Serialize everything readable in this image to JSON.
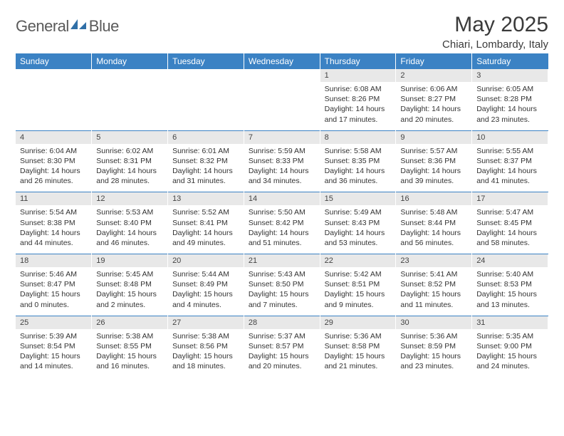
{
  "branding": {
    "word1": "General",
    "word2": "Blue"
  },
  "header": {
    "month_title": "May 2025",
    "location": "Chiari, Lombardy, Italy"
  },
  "colors": {
    "header_bg": "#3b82c4",
    "header_text": "#ffffff",
    "daynum_bg": "#e8e8e8",
    "text": "#333333",
    "rule": "#3b82c4"
  },
  "day_names": [
    "Sunday",
    "Monday",
    "Tuesday",
    "Wednesday",
    "Thursday",
    "Friday",
    "Saturday"
  ],
  "weeks": [
    [
      {
        "blank": true
      },
      {
        "blank": true
      },
      {
        "blank": true
      },
      {
        "blank": true
      },
      {
        "num": "1",
        "sunrise": "Sunrise: 6:08 AM",
        "sunset": "Sunset: 8:26 PM",
        "day1": "Daylight: 14 hours",
        "day2": "and 17 minutes."
      },
      {
        "num": "2",
        "sunrise": "Sunrise: 6:06 AM",
        "sunset": "Sunset: 8:27 PM",
        "day1": "Daylight: 14 hours",
        "day2": "and 20 minutes."
      },
      {
        "num": "3",
        "sunrise": "Sunrise: 6:05 AM",
        "sunset": "Sunset: 8:28 PM",
        "day1": "Daylight: 14 hours",
        "day2": "and 23 minutes."
      }
    ],
    [
      {
        "num": "4",
        "sunrise": "Sunrise: 6:04 AM",
        "sunset": "Sunset: 8:30 PM",
        "day1": "Daylight: 14 hours",
        "day2": "and 26 minutes."
      },
      {
        "num": "5",
        "sunrise": "Sunrise: 6:02 AM",
        "sunset": "Sunset: 8:31 PM",
        "day1": "Daylight: 14 hours",
        "day2": "and 28 minutes."
      },
      {
        "num": "6",
        "sunrise": "Sunrise: 6:01 AM",
        "sunset": "Sunset: 8:32 PM",
        "day1": "Daylight: 14 hours",
        "day2": "and 31 minutes."
      },
      {
        "num": "7",
        "sunrise": "Sunrise: 5:59 AM",
        "sunset": "Sunset: 8:33 PM",
        "day1": "Daylight: 14 hours",
        "day2": "and 34 minutes."
      },
      {
        "num": "8",
        "sunrise": "Sunrise: 5:58 AM",
        "sunset": "Sunset: 8:35 PM",
        "day1": "Daylight: 14 hours",
        "day2": "and 36 minutes."
      },
      {
        "num": "9",
        "sunrise": "Sunrise: 5:57 AM",
        "sunset": "Sunset: 8:36 PM",
        "day1": "Daylight: 14 hours",
        "day2": "and 39 minutes."
      },
      {
        "num": "10",
        "sunrise": "Sunrise: 5:55 AM",
        "sunset": "Sunset: 8:37 PM",
        "day1": "Daylight: 14 hours",
        "day2": "and 41 minutes."
      }
    ],
    [
      {
        "num": "11",
        "sunrise": "Sunrise: 5:54 AM",
        "sunset": "Sunset: 8:38 PM",
        "day1": "Daylight: 14 hours",
        "day2": "and 44 minutes."
      },
      {
        "num": "12",
        "sunrise": "Sunrise: 5:53 AM",
        "sunset": "Sunset: 8:40 PM",
        "day1": "Daylight: 14 hours",
        "day2": "and 46 minutes."
      },
      {
        "num": "13",
        "sunrise": "Sunrise: 5:52 AM",
        "sunset": "Sunset: 8:41 PM",
        "day1": "Daylight: 14 hours",
        "day2": "and 49 minutes."
      },
      {
        "num": "14",
        "sunrise": "Sunrise: 5:50 AM",
        "sunset": "Sunset: 8:42 PM",
        "day1": "Daylight: 14 hours",
        "day2": "and 51 minutes."
      },
      {
        "num": "15",
        "sunrise": "Sunrise: 5:49 AM",
        "sunset": "Sunset: 8:43 PM",
        "day1": "Daylight: 14 hours",
        "day2": "and 53 minutes."
      },
      {
        "num": "16",
        "sunrise": "Sunrise: 5:48 AM",
        "sunset": "Sunset: 8:44 PM",
        "day1": "Daylight: 14 hours",
        "day2": "and 56 minutes."
      },
      {
        "num": "17",
        "sunrise": "Sunrise: 5:47 AM",
        "sunset": "Sunset: 8:45 PM",
        "day1": "Daylight: 14 hours",
        "day2": "and 58 minutes."
      }
    ],
    [
      {
        "num": "18",
        "sunrise": "Sunrise: 5:46 AM",
        "sunset": "Sunset: 8:47 PM",
        "day1": "Daylight: 15 hours",
        "day2": "and 0 minutes."
      },
      {
        "num": "19",
        "sunrise": "Sunrise: 5:45 AM",
        "sunset": "Sunset: 8:48 PM",
        "day1": "Daylight: 15 hours",
        "day2": "and 2 minutes."
      },
      {
        "num": "20",
        "sunrise": "Sunrise: 5:44 AM",
        "sunset": "Sunset: 8:49 PM",
        "day1": "Daylight: 15 hours",
        "day2": "and 4 minutes."
      },
      {
        "num": "21",
        "sunrise": "Sunrise: 5:43 AM",
        "sunset": "Sunset: 8:50 PM",
        "day1": "Daylight: 15 hours",
        "day2": "and 7 minutes."
      },
      {
        "num": "22",
        "sunrise": "Sunrise: 5:42 AM",
        "sunset": "Sunset: 8:51 PM",
        "day1": "Daylight: 15 hours",
        "day2": "and 9 minutes."
      },
      {
        "num": "23",
        "sunrise": "Sunrise: 5:41 AM",
        "sunset": "Sunset: 8:52 PM",
        "day1": "Daylight: 15 hours",
        "day2": "and 11 minutes."
      },
      {
        "num": "24",
        "sunrise": "Sunrise: 5:40 AM",
        "sunset": "Sunset: 8:53 PM",
        "day1": "Daylight: 15 hours",
        "day2": "and 13 minutes."
      }
    ],
    [
      {
        "num": "25",
        "sunrise": "Sunrise: 5:39 AM",
        "sunset": "Sunset: 8:54 PM",
        "day1": "Daylight: 15 hours",
        "day2": "and 14 minutes."
      },
      {
        "num": "26",
        "sunrise": "Sunrise: 5:38 AM",
        "sunset": "Sunset: 8:55 PM",
        "day1": "Daylight: 15 hours",
        "day2": "and 16 minutes."
      },
      {
        "num": "27",
        "sunrise": "Sunrise: 5:38 AM",
        "sunset": "Sunset: 8:56 PM",
        "day1": "Daylight: 15 hours",
        "day2": "and 18 minutes."
      },
      {
        "num": "28",
        "sunrise": "Sunrise: 5:37 AM",
        "sunset": "Sunset: 8:57 PM",
        "day1": "Daylight: 15 hours",
        "day2": "and 20 minutes."
      },
      {
        "num": "29",
        "sunrise": "Sunrise: 5:36 AM",
        "sunset": "Sunset: 8:58 PM",
        "day1": "Daylight: 15 hours",
        "day2": "and 21 minutes."
      },
      {
        "num": "30",
        "sunrise": "Sunrise: 5:36 AM",
        "sunset": "Sunset: 8:59 PM",
        "day1": "Daylight: 15 hours",
        "day2": "and 23 minutes."
      },
      {
        "num": "31",
        "sunrise": "Sunrise: 5:35 AM",
        "sunset": "Sunset: 9:00 PM",
        "day1": "Daylight: 15 hours",
        "day2": "and 24 minutes."
      }
    ]
  ]
}
